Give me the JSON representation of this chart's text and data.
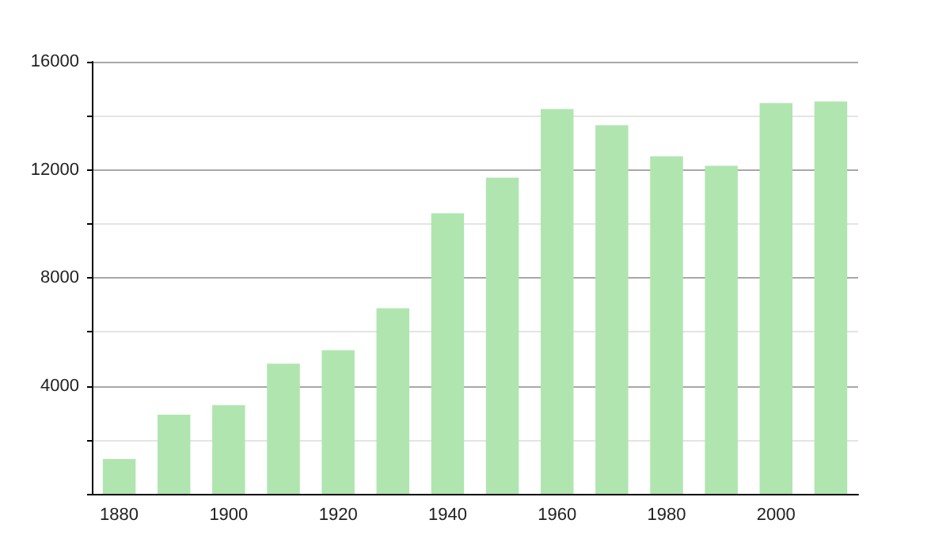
{
  "chart_data": {
    "type": "bar",
    "categories": [
      "1880",
      null,
      "1900",
      null,
      "1920",
      null,
      "1940",
      null,
      "1960",
      null,
      "1980",
      null,
      "2000",
      null
    ],
    "values": [
      1290,
      2930,
      3280,
      4820,
      5320,
      6870,
      10390,
      11710,
      14250,
      13650,
      12500,
      12150,
      14470,
      14530
    ],
    "color": "#b0e5b0",
    "ylim": [
      0,
      16000
    ],
    "yticks": [
      {
        "value": 0,
        "label": null
      },
      {
        "value": 2000,
        "label": null
      },
      4000,
      {
        "value": 6000,
        "label": null
      },
      8000,
      {
        "value": 10000,
        "label": null
      },
      12000,
      {
        "value": 14000,
        "label": null
      },
      16000
    ],
    "grid": "y"
  }
}
